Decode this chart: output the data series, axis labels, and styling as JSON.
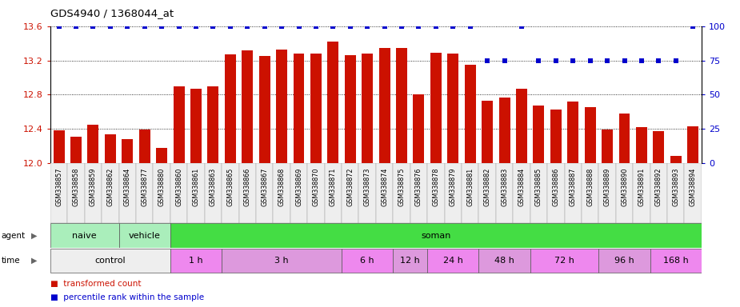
{
  "title": "GDS4940 / 1368044_at",
  "samples": [
    "GSM338857",
    "GSM338858",
    "GSM338859",
    "GSM338862",
    "GSM338864",
    "GSM338877",
    "GSM338880",
    "GSM338860",
    "GSM338861",
    "GSM338863",
    "GSM338865",
    "GSM338866",
    "GSM338867",
    "GSM338868",
    "GSM338869",
    "GSM338870",
    "GSM338871",
    "GSM338872",
    "GSM338873",
    "GSM338874",
    "GSM338875",
    "GSM338876",
    "GSM338878",
    "GSM338879",
    "GSM338881",
    "GSM338882",
    "GSM338883",
    "GSM338884",
    "GSM338885",
    "GSM338886",
    "GSM338887",
    "GSM338888",
    "GSM338889",
    "GSM338890",
    "GSM338891",
    "GSM338892",
    "GSM338893",
    "GSM338894"
  ],
  "bar_values": [
    12.38,
    12.31,
    12.45,
    12.34,
    12.28,
    12.39,
    12.18,
    12.9,
    12.87,
    12.9,
    13.27,
    13.32,
    13.25,
    13.33,
    13.28,
    13.28,
    13.42,
    13.26,
    13.28,
    13.35,
    13.35,
    12.8,
    13.29,
    13.28,
    13.15,
    12.73,
    12.77,
    12.87,
    12.67,
    12.63,
    12.72,
    12.65,
    12.39,
    12.58,
    12.42,
    12.37,
    12.08,
    12.43
  ],
  "percentile_values": [
    100,
    100,
    100,
    100,
    100,
    100,
    100,
    100,
    100,
    100,
    100,
    100,
    100,
    100,
    100,
    100,
    100,
    100,
    100,
    100,
    100,
    100,
    100,
    100,
    100,
    75,
    75,
    100,
    75,
    75,
    75,
    75,
    75,
    75,
    75,
    75,
    75,
    100
  ],
  "bar_color": "#cc1100",
  "percentile_color": "#0000cc",
  "ylim_left": [
    12.0,
    13.6
  ],
  "ylim_right": [
    0,
    100
  ],
  "yticks_left": [
    12.0,
    12.4,
    12.8,
    13.2,
    13.6
  ],
  "yticks_right": [
    0,
    25,
    50,
    75,
    100
  ],
  "agent_groups": [
    {
      "label": "naive",
      "start": 0,
      "end": 4,
      "color": "#aaeebb"
    },
    {
      "label": "vehicle",
      "start": 4,
      "end": 7,
      "color": "#aaeebb"
    },
    {
      "label": "soman",
      "start": 7,
      "end": 38,
      "color": "#44dd44"
    }
  ],
  "time_groups": [
    {
      "label": "control",
      "start": 0,
      "end": 7,
      "color": "#eeeeee"
    },
    {
      "label": "1 h",
      "start": 7,
      "end": 10,
      "color": "#ee88ee"
    },
    {
      "label": "3 h",
      "start": 10,
      "end": 17,
      "color": "#dd99dd"
    },
    {
      "label": "6 h",
      "start": 17,
      "end": 20,
      "color": "#ee88ee"
    },
    {
      "label": "12 h",
      "start": 20,
      "end": 22,
      "color": "#dd99dd"
    },
    {
      "label": "24 h",
      "start": 22,
      "end": 25,
      "color": "#ee88ee"
    },
    {
      "label": "48 h",
      "start": 25,
      "end": 28,
      "color": "#dd99dd"
    },
    {
      "label": "72 h",
      "start": 28,
      "end": 32,
      "color": "#ee88ee"
    },
    {
      "label": "96 h",
      "start": 32,
      "end": 35,
      "color": "#dd99dd"
    },
    {
      "label": "168 h",
      "start": 35,
      "end": 38,
      "color": "#ee88ee"
    }
  ],
  "background_color": "#ffffff",
  "plot_bg_color": "#ffffff"
}
